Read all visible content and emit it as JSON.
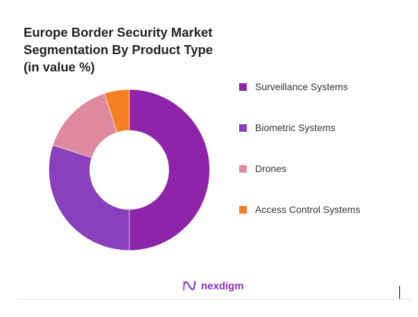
{
  "chart_data": {
    "type": "pie",
    "donut": true,
    "title": "Europe Border Security Market Segmentation By Product Type (in value %)",
    "categories": [
      "Surveillance Systems",
      "Biometric Systems",
      "Drones",
      "Access Control Systems"
    ],
    "values": [
      50,
      30,
      15,
      5
    ],
    "colors": [
      "#8e24aa",
      "#8a40bd",
      "#df8a9e",
      "#f57f22"
    ],
    "legend_position": "right"
  },
  "brand": {
    "name": "nexdigm",
    "color": "#8a2fc7"
  }
}
